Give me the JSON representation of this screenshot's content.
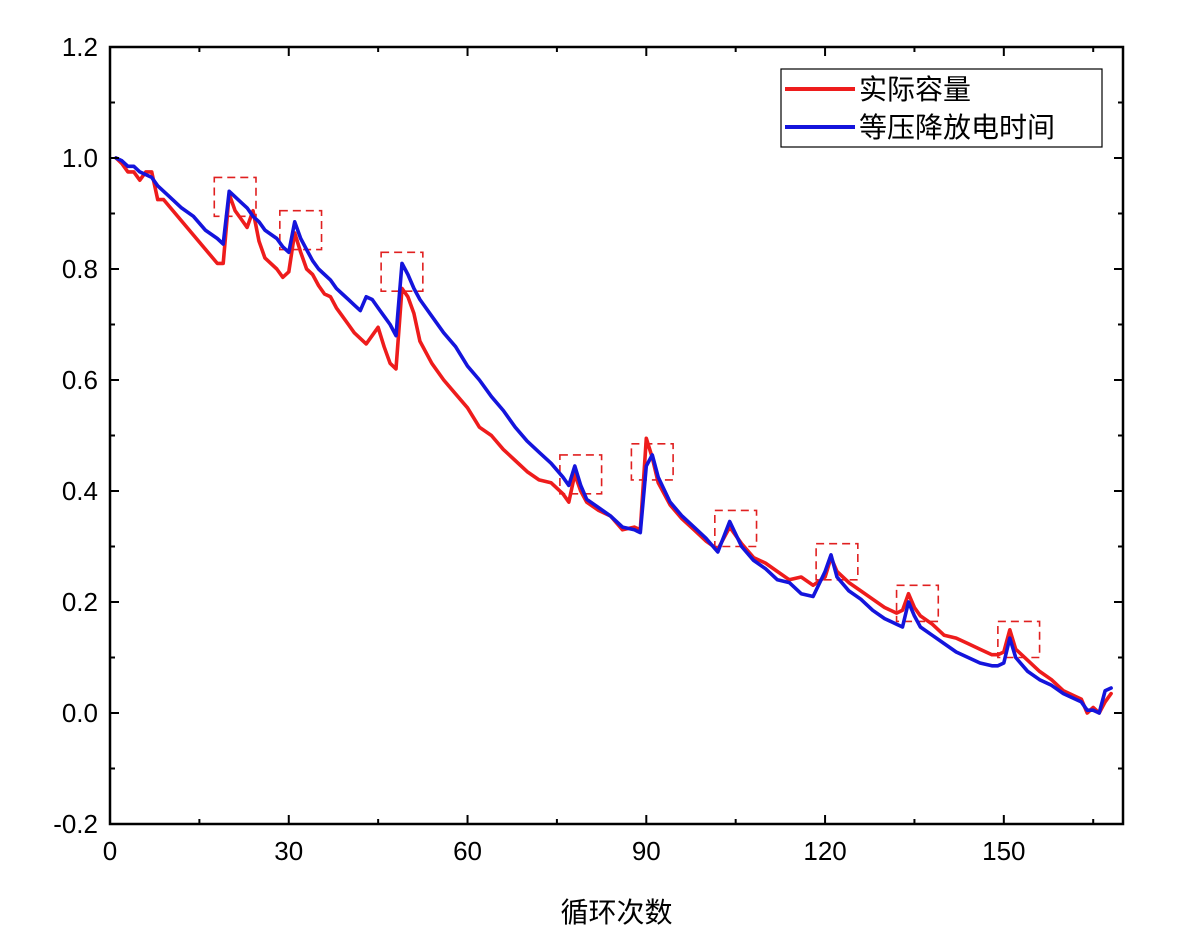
{
  "chart_data": {
    "type": "line",
    "title": "",
    "xlabel": "循环次数",
    "ylabel": "",
    "xlim": [
      0,
      170
    ],
    "ylim": [
      -0.2,
      1.2
    ],
    "xticks": [
      0,
      30,
      60,
      90,
      120,
      150
    ],
    "xtick_labels": [
      "0",
      "30",
      "60",
      "90",
      "120",
      "150"
    ],
    "yticks": [
      -0.2,
      0.0,
      0.2,
      0.4,
      0.6,
      0.8,
      1.0,
      1.2
    ],
    "ytick_labels": [
      "-0.2",
      "0.0",
      "0.2",
      "0.4",
      "0.6",
      "0.8",
      "1.0",
      "1.2"
    ],
    "legend_position": "top-right",
    "colors": {
      "actual": "#ee1c1c",
      "voltage": "#1414dc",
      "box": "#e02020"
    },
    "series": [
      {
        "name": "实际容量",
        "color": "#ee1c1c",
        "points": [
          [
            1,
            1.0
          ],
          [
            2,
            0.99
          ],
          [
            3,
            0.975
          ],
          [
            4,
            0.975
          ],
          [
            5,
            0.96
          ],
          [
            6,
            0.975
          ],
          [
            7,
            0.975
          ],
          [
            8,
            0.925
          ],
          [
            9,
            0.925
          ],
          [
            18,
            0.81
          ],
          [
            19,
            0.81
          ],
          [
            20,
            0.935
          ],
          [
            21,
            0.905
          ],
          [
            22,
            0.89
          ],
          [
            23,
            0.875
          ],
          [
            24,
            0.905
          ],
          [
            25,
            0.85
          ],
          [
            26,
            0.82
          ],
          [
            28,
            0.8
          ],
          [
            29,
            0.785
          ],
          [
            30,
            0.795
          ],
          [
            31,
            0.865
          ],
          [
            32,
            0.83
          ],
          [
            33,
            0.8
          ],
          [
            34,
            0.79
          ],
          [
            35,
            0.77
          ],
          [
            36,
            0.755
          ],
          [
            37,
            0.75
          ],
          [
            38,
            0.73
          ],
          [
            39,
            0.715
          ],
          [
            40,
            0.7
          ],
          [
            41,
            0.685
          ],
          [
            42,
            0.675
          ],
          [
            43,
            0.665
          ],
          [
            44,
            0.68
          ],
          [
            45,
            0.695
          ],
          [
            46,
            0.66
          ],
          [
            47,
            0.63
          ],
          [
            48,
            0.62
          ],
          [
            49,
            0.765
          ],
          [
            50,
            0.75
          ],
          [
            51,
            0.72
          ],
          [
            52,
            0.67
          ],
          [
            54,
            0.63
          ],
          [
            56,
            0.6
          ],
          [
            58,
            0.575
          ],
          [
            60,
            0.55
          ],
          [
            62,
            0.515
          ],
          [
            64,
            0.5
          ],
          [
            66,
            0.475
          ],
          [
            68,
            0.455
          ],
          [
            70,
            0.435
          ],
          [
            72,
            0.42
          ],
          [
            74,
            0.415
          ],
          [
            76,
            0.395
          ],
          [
            77,
            0.38
          ],
          [
            78,
            0.43
          ],
          [
            79,
            0.4
          ],
          [
            80,
            0.38
          ],
          [
            82,
            0.365
          ],
          [
            84,
            0.355
          ],
          [
            86,
            0.33
          ],
          [
            88,
            0.335
          ],
          [
            89,
            0.33
          ],
          [
            90,
            0.495
          ],
          [
            91,
            0.46
          ],
          [
            92,
            0.415
          ],
          [
            94,
            0.375
          ],
          [
            96,
            0.35
          ],
          [
            98,
            0.33
          ],
          [
            100,
            0.31
          ],
          [
            102,
            0.295
          ],
          [
            104,
            0.335
          ],
          [
            106,
            0.305
          ],
          [
            108,
            0.28
          ],
          [
            110,
            0.27
          ],
          [
            112,
            0.255
          ],
          [
            114,
            0.24
          ],
          [
            116,
            0.245
          ],
          [
            118,
            0.23
          ],
          [
            120,
            0.245
          ],
          [
            121,
            0.28
          ],
          [
            122,
            0.255
          ],
          [
            124,
            0.235
          ],
          [
            126,
            0.22
          ],
          [
            128,
            0.205
          ],
          [
            130,
            0.19
          ],
          [
            132,
            0.18
          ],
          [
            133,
            0.185
          ],
          [
            134,
            0.215
          ],
          [
            135,
            0.19
          ],
          [
            136,
            0.175
          ],
          [
            138,
            0.16
          ],
          [
            140,
            0.14
          ],
          [
            142,
            0.135
          ],
          [
            144,
            0.125
          ],
          [
            146,
            0.115
          ],
          [
            148,
            0.105
          ],
          [
            149,
            0.105
          ],
          [
            150,
            0.11
          ],
          [
            151,
            0.15
          ],
          [
            152,
            0.115
          ],
          [
            154,
            0.095
          ],
          [
            156,
            0.075
          ],
          [
            158,
            0.06
          ],
          [
            160,
            0.04
          ],
          [
            162,
            0.03
          ],
          [
            163,
            0.025
          ],
          [
            164,
            0.0
          ],
          [
            165,
            0.01
          ],
          [
            166,
            0.0
          ],
          [
            167,
            0.02
          ],
          [
            168,
            0.035
          ]
        ]
      },
      {
        "name": "等压降放电时间",
        "color": "#1414dc",
        "points": [
          [
            1,
            1.0
          ],
          [
            2,
            0.995
          ],
          [
            3,
            0.985
          ],
          [
            4,
            0.985
          ],
          [
            5,
            0.975
          ],
          [
            6,
            0.97
          ],
          [
            7,
            0.965
          ],
          [
            8,
            0.95
          ],
          [
            10,
            0.93
          ],
          [
            12,
            0.91
          ],
          [
            14,
            0.895
          ],
          [
            16,
            0.87
          ],
          [
            18,
            0.855
          ],
          [
            19,
            0.845
          ],
          [
            20,
            0.94
          ],
          [
            21,
            0.93
          ],
          [
            22,
            0.92
          ],
          [
            23,
            0.91
          ],
          [
            24,
            0.895
          ],
          [
            25,
            0.885
          ],
          [
            26,
            0.87
          ],
          [
            28,
            0.855
          ],
          [
            29,
            0.84
          ],
          [
            30,
            0.83
          ],
          [
            31,
            0.885
          ],
          [
            32,
            0.855
          ],
          [
            33,
            0.835
          ],
          [
            34,
            0.815
          ],
          [
            35,
            0.8
          ],
          [
            36,
            0.79
          ],
          [
            37,
            0.78
          ],
          [
            38,
            0.765
          ],
          [
            39,
            0.755
          ],
          [
            40,
            0.745
          ],
          [
            41,
            0.735
          ],
          [
            42,
            0.725
          ],
          [
            43,
            0.75
          ],
          [
            44,
            0.745
          ],
          [
            45,
            0.73
          ],
          [
            46,
            0.715
          ],
          [
            47,
            0.7
          ],
          [
            48,
            0.68
          ],
          [
            49,
            0.81
          ],
          [
            50,
            0.79
          ],
          [
            51,
            0.765
          ],
          [
            52,
            0.745
          ],
          [
            54,
            0.715
          ],
          [
            56,
            0.685
          ],
          [
            58,
            0.66
          ],
          [
            60,
            0.625
          ],
          [
            62,
            0.6
          ],
          [
            64,
            0.57
          ],
          [
            66,
            0.545
          ],
          [
            68,
            0.515
          ],
          [
            70,
            0.49
          ],
          [
            72,
            0.47
          ],
          [
            74,
            0.45
          ],
          [
            76,
            0.425
          ],
          [
            77,
            0.41
          ],
          [
            78,
            0.445
          ],
          [
            79,
            0.41
          ],
          [
            80,
            0.385
          ],
          [
            82,
            0.37
          ],
          [
            84,
            0.355
          ],
          [
            86,
            0.335
          ],
          [
            88,
            0.33
          ],
          [
            89,
            0.325
          ],
          [
            90,
            0.445
          ],
          [
            91,
            0.465
          ],
          [
            92,
            0.425
          ],
          [
            94,
            0.38
          ],
          [
            96,
            0.355
          ],
          [
            98,
            0.335
          ],
          [
            100,
            0.315
          ],
          [
            102,
            0.29
          ],
          [
            104,
            0.345
          ],
          [
            106,
            0.3
          ],
          [
            108,
            0.275
          ],
          [
            110,
            0.26
          ],
          [
            112,
            0.24
          ],
          [
            114,
            0.235
          ],
          [
            116,
            0.215
          ],
          [
            118,
            0.21
          ],
          [
            120,
            0.255
          ],
          [
            121,
            0.285
          ],
          [
            122,
            0.245
          ],
          [
            124,
            0.22
          ],
          [
            126,
            0.205
          ],
          [
            128,
            0.185
          ],
          [
            130,
            0.17
          ],
          [
            132,
            0.16
          ],
          [
            133,
            0.155
          ],
          [
            134,
            0.2
          ],
          [
            135,
            0.175
          ],
          [
            136,
            0.155
          ],
          [
            138,
            0.14
          ],
          [
            140,
            0.125
          ],
          [
            142,
            0.11
          ],
          [
            144,
            0.1
          ],
          [
            146,
            0.09
          ],
          [
            148,
            0.085
          ],
          [
            149,
            0.085
          ],
          [
            150,
            0.09
          ],
          [
            151,
            0.135
          ],
          [
            152,
            0.1
          ],
          [
            154,
            0.075
          ],
          [
            156,
            0.06
          ],
          [
            158,
            0.05
          ],
          [
            160,
            0.035
          ],
          [
            162,
            0.025
          ],
          [
            163,
            0.02
          ],
          [
            164,
            0.005
          ],
          [
            165,
            0.005
          ],
          [
            166,
            0.0
          ],
          [
            167,
            0.04
          ],
          [
            168,
            0.045
          ]
        ]
      }
    ],
    "highlight_boxes": [
      {
        "x": [
          17.5,
          24.5
        ],
        "y": [
          0.895,
          0.965
        ]
      },
      {
        "x": [
          28.5,
          35.5
        ],
        "y": [
          0.835,
          0.905
        ]
      },
      {
        "x": [
          45.5,
          52.5
        ],
        "y": [
          0.76,
          0.83
        ]
      },
      {
        "x": [
          75.5,
          82.5
        ],
        "y": [
          0.395,
          0.465
        ]
      },
      {
        "x": [
          87.5,
          94.5
        ],
        "y": [
          0.42,
          0.485
        ]
      },
      {
        "x": [
          101.5,
          108.5
        ],
        "y": [
          0.3,
          0.365
        ]
      },
      {
        "x": [
          118.5,
          125.5
        ],
        "y": [
          0.24,
          0.305
        ]
      },
      {
        "x": [
          132,
          139
        ],
        "y": [
          0.165,
          0.23
        ]
      },
      {
        "x": [
          149,
          156
        ],
        "y": [
          0.1,
          0.165
        ]
      }
    ]
  }
}
